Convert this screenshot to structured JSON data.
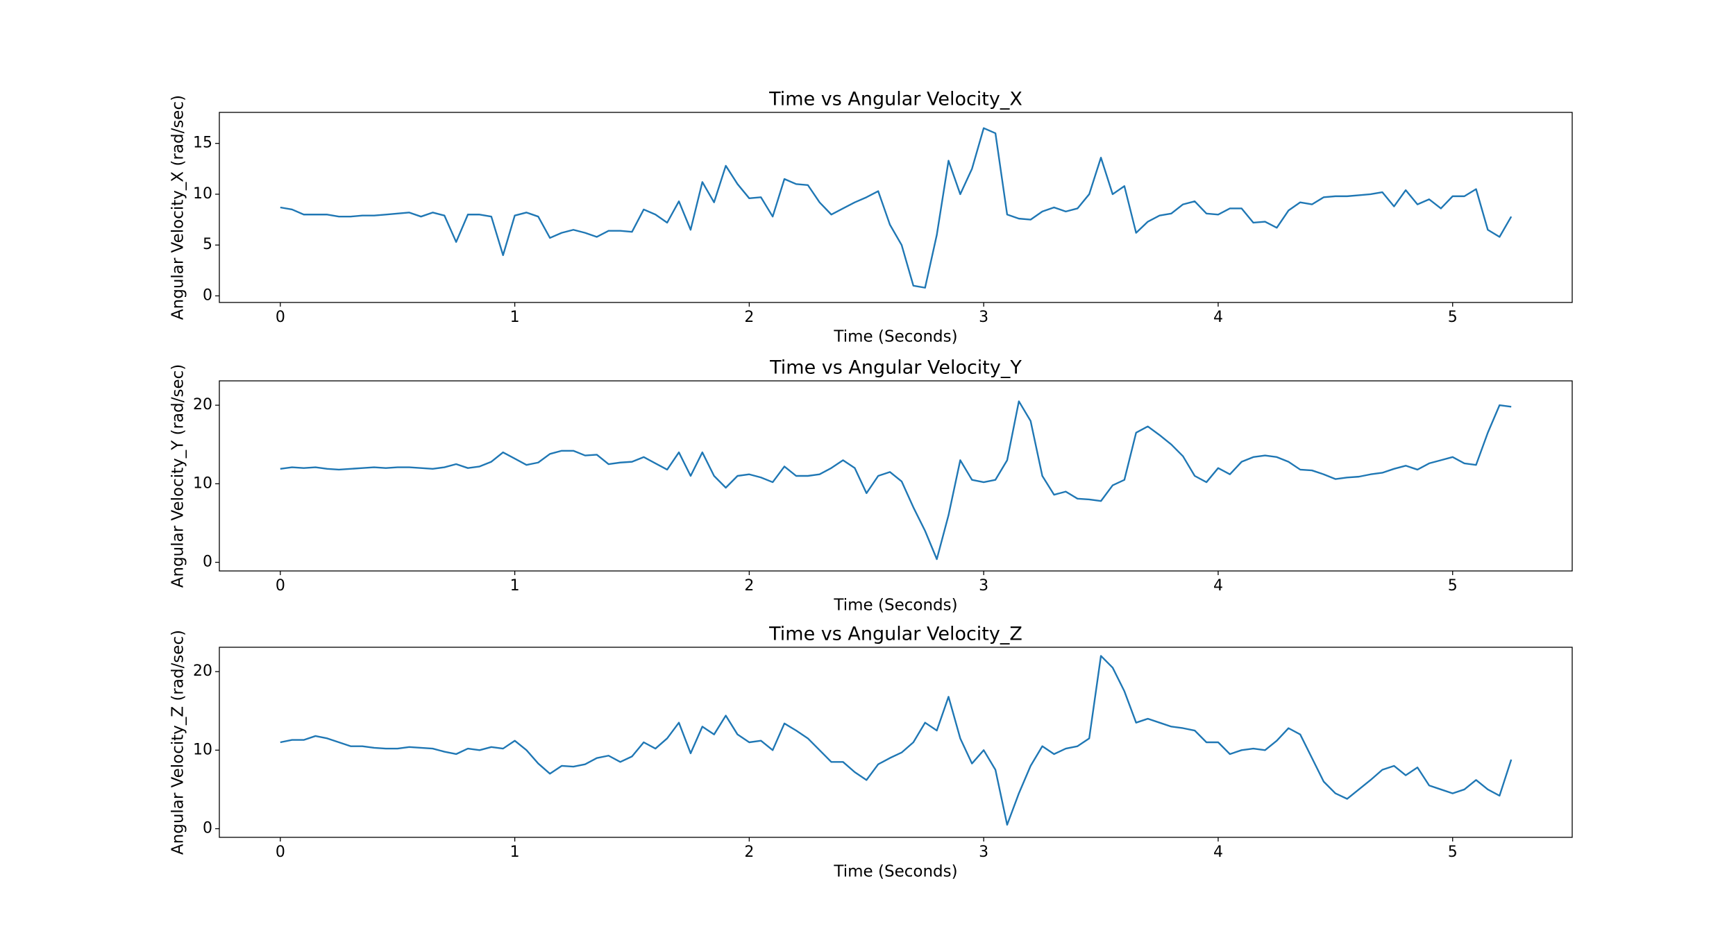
{
  "chart_data": [
    {
      "type": "line",
      "title": "Time vs Angular Velocity_X",
      "xlabel": "Time (Seconds)",
      "ylabel": "Angular Velocity_X (rad/sec)",
      "color": "#1f77b4",
      "x": [
        0,
        0.05,
        0.1,
        0.15,
        0.2,
        0.25,
        0.3,
        0.35,
        0.4,
        0.45,
        0.5,
        0.55,
        0.6,
        0.65,
        0.7,
        0.75,
        0.8,
        0.85,
        0.9,
        0.95,
        1.0,
        1.05,
        1.1,
        1.15,
        1.2,
        1.25,
        1.3,
        1.35,
        1.4,
        1.45,
        1.5,
        1.55,
        1.6,
        1.65,
        1.7,
        1.75,
        1.8,
        1.85,
        1.9,
        1.95,
        2.0,
        2.05,
        2.1,
        2.15,
        2.2,
        2.25,
        2.3,
        2.35,
        2.4,
        2.45,
        2.5,
        2.55,
        2.6,
        2.65,
        2.7,
        2.75,
        2.8,
        2.85,
        2.9,
        2.95,
        3.0,
        3.05,
        3.1,
        3.15,
        3.2,
        3.25,
        3.3,
        3.35,
        3.4,
        3.45,
        3.5,
        3.55,
        3.6,
        3.65,
        3.7,
        3.75,
        3.8,
        3.85,
        3.9,
        3.95,
        4.0,
        4.05,
        4.1,
        4.15,
        4.2,
        4.25,
        4.3,
        4.35,
        4.4,
        4.45,
        4.5,
        4.55,
        4.6,
        4.65,
        4.7,
        4.75,
        4.8,
        4.85,
        4.9,
        4.95,
        5.0,
        5.05,
        5.1,
        5.15,
        5.2,
        5.25
      ],
      "values": [
        8.7,
        8.5,
        8.0,
        8.0,
        8.0,
        7.8,
        7.8,
        7.9,
        7.9,
        8.0,
        8.1,
        8.2,
        7.8,
        8.2,
        7.9,
        5.3,
        8.0,
        8.0,
        7.8,
        4.0,
        7.9,
        8.2,
        7.8,
        5.7,
        6.2,
        6.5,
        6.2,
        5.8,
        6.4,
        6.4,
        6.3,
        8.5,
        8.0,
        7.2,
        9.3,
        6.5,
        11.2,
        9.2,
        12.8,
        11.0,
        9.6,
        9.7,
        7.8,
        11.5,
        11.0,
        10.9,
        9.2,
        8.0,
        8.6,
        9.2,
        9.7,
        10.3,
        7.0,
        5.0,
        1.0,
        0.8,
        6.0,
        13.3,
        10.0,
        12.5,
        16.5,
        16.0,
        8.0,
        7.6,
        7.5,
        8.3,
        8.7,
        8.3,
        8.6,
        10.0,
        13.6,
        10.0,
        10.8,
        6.2,
        7.3,
        7.9,
        8.1,
        9.0,
        9.3,
        8.1,
        8.0,
        8.6,
        8.6,
        7.2,
        7.3,
        6.7,
        8.4,
        9.2,
        9.0,
        9.7,
        9.8,
        9.8,
        9.9,
        10.0,
        10.2,
        8.8,
        10.4,
        9.0,
        9.5,
        8.6,
        9.8,
        9.8,
        10.5,
        6.5,
        5.8,
        7.8
      ],
      "xlim": [
        -0.26,
        5.51
      ],
      "xticks": [
        0,
        1,
        2,
        3,
        4,
        5
      ],
      "ylim": [
        -0.65,
        18.05
      ],
      "yticks": [
        0,
        5,
        10,
        15
      ]
    },
    {
      "type": "line",
      "title": "Time vs Angular Velocity_Y",
      "xlabel": "Time (Seconds)",
      "ylabel": "Angular Velocity_Y (rad/sec)",
      "color": "#1f77b4",
      "x": [
        0,
        0.05,
        0.1,
        0.15,
        0.2,
        0.25,
        0.3,
        0.35,
        0.4,
        0.45,
        0.5,
        0.55,
        0.6,
        0.65,
        0.7,
        0.75,
        0.8,
        0.85,
        0.9,
        0.95,
        1.0,
        1.05,
        1.1,
        1.15,
        1.2,
        1.25,
        1.3,
        1.35,
        1.4,
        1.45,
        1.5,
        1.55,
        1.6,
        1.65,
        1.7,
        1.75,
        1.8,
        1.85,
        1.9,
        1.95,
        2.0,
        2.05,
        2.1,
        2.15,
        2.2,
        2.25,
        2.3,
        2.35,
        2.4,
        2.45,
        2.5,
        2.55,
        2.6,
        2.65,
        2.7,
        2.75,
        2.8,
        2.85,
        2.9,
        2.95,
        3.0,
        3.05,
        3.1,
        3.15,
        3.2,
        3.25,
        3.3,
        3.35,
        3.4,
        3.45,
        3.5,
        3.55,
        3.6,
        3.65,
        3.7,
        3.75,
        3.8,
        3.85,
        3.9,
        3.95,
        4.0,
        4.05,
        4.1,
        4.15,
        4.2,
        4.25,
        4.3,
        4.35,
        4.4,
        4.45,
        4.5,
        4.55,
        4.6,
        4.65,
        4.7,
        4.75,
        4.8,
        4.85,
        4.9,
        4.95,
        5.0,
        5.05,
        5.1,
        5.15,
        5.2,
        5.25
      ],
      "values": [
        11.9,
        12.1,
        12.0,
        12.1,
        11.9,
        11.8,
        11.9,
        12.0,
        12.1,
        12.0,
        12.1,
        12.1,
        12.0,
        11.9,
        12.1,
        12.5,
        12.0,
        12.2,
        12.8,
        14.0,
        13.2,
        12.4,
        12.7,
        13.8,
        14.2,
        14.2,
        13.6,
        13.7,
        12.5,
        12.7,
        12.8,
        13.4,
        12.6,
        11.8,
        14.0,
        11.0,
        14.0,
        11.0,
        9.5,
        11.0,
        11.2,
        10.8,
        10.2,
        12.2,
        11.0,
        11.0,
        11.2,
        12.0,
        13.0,
        12.0,
        8.8,
        11.0,
        11.5,
        10.3,
        7.0,
        4.0,
        0.4,
        6.0,
        13.0,
        10.5,
        10.2,
        10.5,
        13.0,
        20.5,
        18.0,
        11.0,
        8.6,
        9.0,
        8.1,
        8.0,
        7.8,
        9.8,
        10.5,
        16.5,
        17.3,
        16.2,
        15.0,
        13.5,
        11.0,
        10.2,
        12.0,
        11.2,
        12.8,
        13.4,
        13.6,
        13.4,
        12.8,
        11.8,
        11.7,
        11.2,
        10.6,
        10.8,
        10.9,
        11.2,
        11.4,
        11.9,
        12.3,
        11.8,
        12.6,
        13.0,
        13.4,
        12.6,
        12.4,
        16.5,
        20.0,
        19.8
      ],
      "xlim": [
        -0.26,
        5.51
      ],
      "xticks": [
        0,
        1,
        2,
        3,
        4,
        5
      ],
      "ylim": [
        -1.1,
        23.1
      ],
      "yticks": [
        0,
        10,
        20
      ]
    },
    {
      "type": "line",
      "title": "Time vs Angular Velocity_Z",
      "xlabel": "Time (Seconds)",
      "ylabel": "Angular Velocity_Z (rad/sec)",
      "color": "#1f77b4",
      "x": [
        0,
        0.05,
        0.1,
        0.15,
        0.2,
        0.25,
        0.3,
        0.35,
        0.4,
        0.45,
        0.5,
        0.55,
        0.6,
        0.65,
        0.7,
        0.75,
        0.8,
        0.85,
        0.9,
        0.95,
        1.0,
        1.05,
        1.1,
        1.15,
        1.2,
        1.25,
        1.3,
        1.35,
        1.4,
        1.45,
        1.5,
        1.55,
        1.6,
        1.65,
        1.7,
        1.75,
        1.8,
        1.85,
        1.9,
        1.95,
        2.0,
        2.05,
        2.1,
        2.15,
        2.2,
        2.25,
        2.3,
        2.35,
        2.4,
        2.45,
        2.5,
        2.55,
        2.6,
        2.65,
        2.7,
        2.75,
        2.8,
        2.85,
        2.9,
        2.95,
        3.0,
        3.05,
        3.1,
        3.15,
        3.2,
        3.25,
        3.3,
        3.35,
        3.4,
        3.45,
        3.5,
        3.55,
        3.6,
        3.65,
        3.7,
        3.75,
        3.8,
        3.85,
        3.9,
        3.95,
        4.0,
        4.05,
        4.1,
        4.15,
        4.2,
        4.25,
        4.3,
        4.35,
        4.4,
        4.45,
        4.5,
        4.55,
        4.6,
        4.65,
        4.7,
        4.75,
        4.8,
        4.85,
        4.9,
        4.95,
        5.0,
        5.05,
        5.1,
        5.15,
        5.2,
        5.25
      ],
      "values": [
        11.0,
        11.3,
        11.3,
        11.8,
        11.5,
        11.0,
        10.5,
        10.5,
        10.3,
        10.2,
        10.2,
        10.4,
        10.3,
        10.2,
        9.8,
        9.5,
        10.2,
        10.0,
        10.4,
        10.2,
        11.2,
        10.0,
        8.3,
        7.0,
        8.0,
        7.9,
        8.2,
        9.0,
        9.3,
        8.5,
        9.2,
        11.0,
        10.2,
        11.5,
        13.5,
        9.6,
        13.0,
        12.0,
        14.4,
        12.0,
        11.0,
        11.2,
        10.0,
        13.4,
        12.5,
        11.5,
        10.0,
        8.5,
        8.5,
        7.2,
        6.2,
        8.2,
        9.0,
        9.7,
        11.0,
        13.5,
        12.5,
        16.8,
        11.5,
        8.3,
        10.0,
        7.5,
        0.5,
        4.5,
        8.0,
        10.5,
        9.5,
        10.2,
        10.5,
        11.5,
        22.0,
        20.5,
        17.5,
        13.5,
        14.0,
        13.5,
        13.0,
        12.8,
        12.5,
        11.0,
        11.0,
        9.5,
        10.0,
        10.2,
        10.0,
        11.2,
        12.8,
        12.0,
        9.0,
        6.0,
        4.5,
        3.8,
        5.0,
        6.2,
        7.5,
        8.0,
        6.8,
        7.8,
        5.5,
        5.0,
        4.5,
        5.0,
        6.2,
        5.0,
        4.2,
        8.8
      ],
      "xlim": [
        -0.26,
        5.51
      ],
      "xticks": [
        0,
        1,
        2,
        3,
        4,
        5
      ],
      "ylim": [
        -1.1,
        23.1
      ],
      "yticks": [
        0,
        10,
        20
      ]
    }
  ]
}
